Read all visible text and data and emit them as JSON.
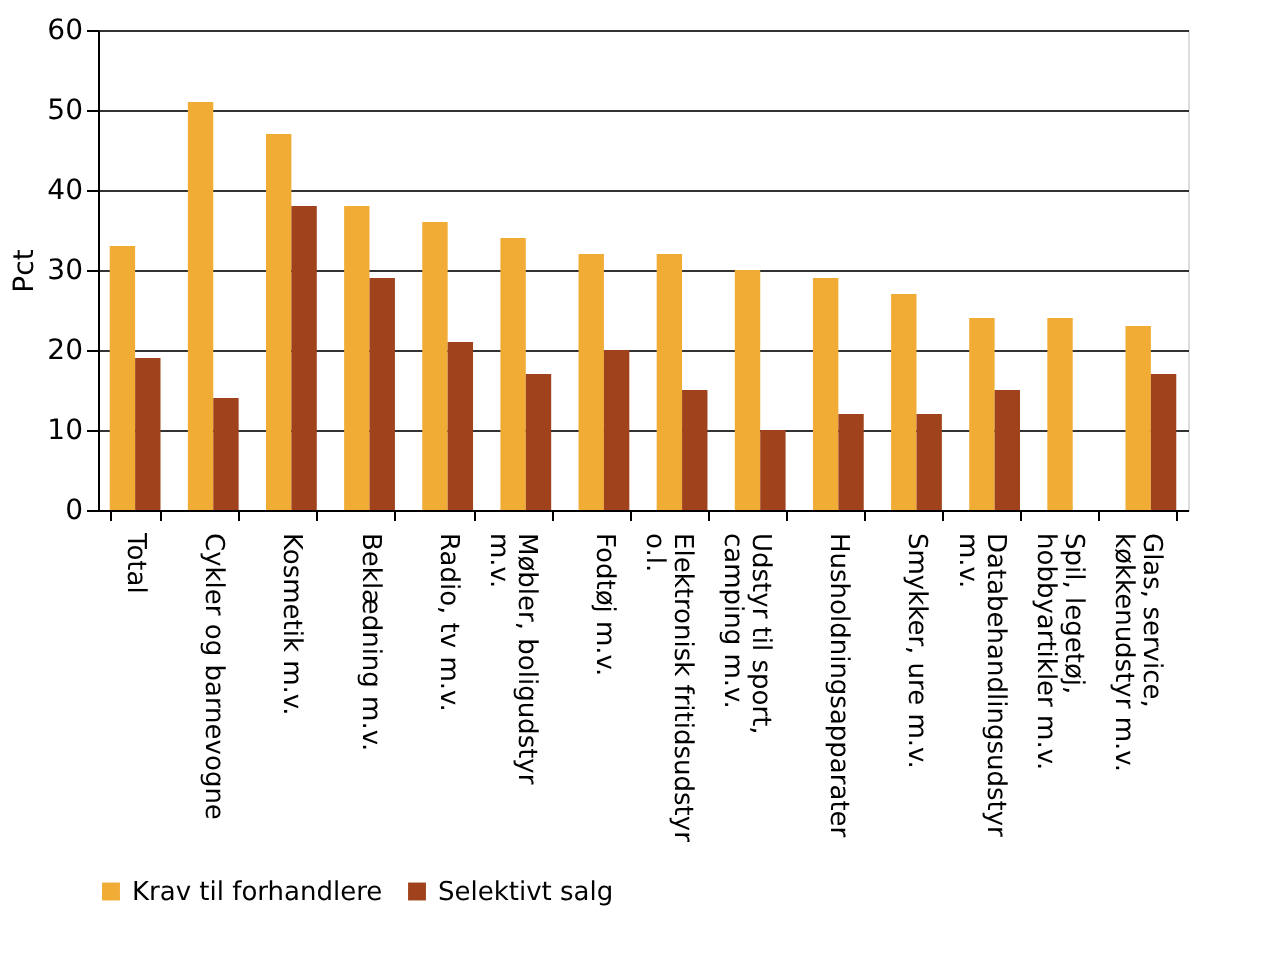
{
  "chart_data": {
    "type": "bar",
    "ylabel": "Pct",
    "categories": [
      "Total",
      "Cykler og barnevogne",
      "Kosmetik m.v.",
      "Beklædning m.v.",
      "Radio, tv m.v.",
      "Møbler, boligudstyr\nm.v.",
      "Fodtøj m.v.",
      "Elektronisk fritidsudstyr\no.l.",
      "Udstyr til sport,\ncamping m.v.",
      "Husholdningsapparater",
      "Smykker, ure m.v.",
      "Databehandlingsudstyr\nm.v.",
      "Spil, legetøj,\nhobbyartikler m.v.",
      "Glas, service,\nkøkkenudstyr m.v."
    ],
    "series": [
      {
        "name": "Krav til forhandlere",
        "color": "#f0ac35",
        "values": [
          33,
          51,
          47,
          38,
          36,
          34,
          32,
          32,
          30,
          29,
          27,
          24,
          24,
          23
        ]
      },
      {
        "name": "Selektivt salg",
        "color": "#a0431d",
        "values": [
          19,
          14,
          38,
          29,
          21,
          17,
          20,
          15,
          10,
          12,
          12,
          15,
          null,
          17
        ]
      }
    ],
    "ylim": [
      0,
      60
    ],
    "yticks": [
      0,
      10,
      20,
      30,
      40,
      50,
      60
    ],
    "grid": "y",
    "legend": "bottom"
  }
}
